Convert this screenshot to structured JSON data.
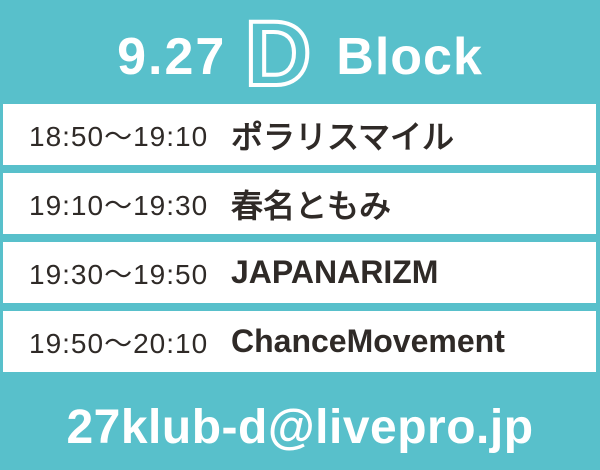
{
  "theme": {
    "background": "#58c0cb",
    "row_background": "#ffffff",
    "dark_text": "#2f2a27",
    "light_text": "#ffffff"
  },
  "header": {
    "date": "9.27",
    "block_letter": "D",
    "block_word": "Block"
  },
  "schedule": {
    "rows": [
      {
        "time": "18:50〜19:10",
        "artist": "ポラリスマイル"
      },
      {
        "time": "19:10〜19:30",
        "artist": "春名ともみ"
      },
      {
        "time": "19:30〜19:50",
        "artist": "JAPANARIZM"
      },
      {
        "time": "19:50〜20:10",
        "artist": "ChanceMovement"
      }
    ]
  },
  "footer": {
    "email": "27klub-d@livepro.jp"
  }
}
